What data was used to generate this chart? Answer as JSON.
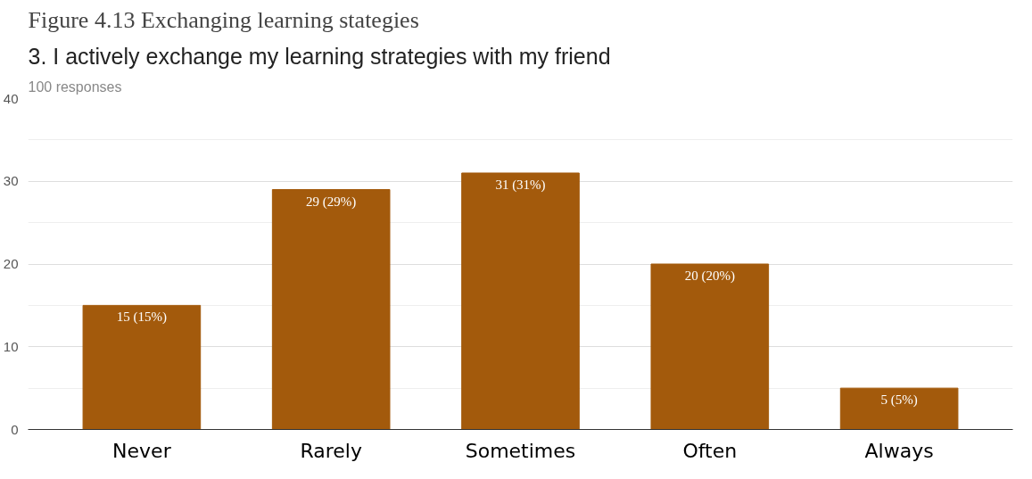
{
  "chart_data": {
    "type": "bar",
    "title": "Figure 4.13  Exchanging learning stategies",
    "subtitle": "3. I actively exchange my learning strategies with my friend",
    "annotations": [
      "100 responses"
    ],
    "categories": [
      "Never",
      "Rarely",
      "Sometimes",
      "Often",
      "Always"
    ],
    "values": [
      15,
      29,
      31,
      20,
      5
    ],
    "color": "#a35a0c",
    "value_labels": [
      "15 (15%)",
      "29 (29%)",
      "31 (31%)",
      "20 (20%)",
      "5 (5%)"
    ],
    "ylim": [
      0,
      40
    ],
    "yticks": [
      0,
      10,
      20,
      30,
      40
    ],
    "grid": "y"
  }
}
